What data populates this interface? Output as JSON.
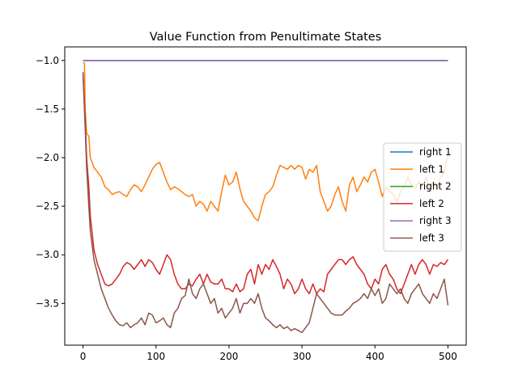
{
  "chart_data": {
    "type": "line",
    "title": "Value Function from Penultimate States",
    "xlabel": "",
    "ylabel": "",
    "xlim": [
      -25,
      525
    ],
    "ylim": [
      -3.93,
      -0.86
    ],
    "xticks": [
      0,
      100,
      200,
      300,
      400,
      500
    ],
    "yticks": [
      -1.0,
      -1.5,
      -2.0,
      -2.5,
      -3.0,
      -3.5
    ],
    "ytick_labels": [
      "−1.0",
      "−1.5",
      "−2.0",
      "−2.5",
      "−3.0",
      "−3.5"
    ],
    "grid": false,
    "legend_position": "right",
    "series": [
      {
        "name": "right 1",
        "color": "#1f77b4",
        "points": [
          [
            0,
            -1.0
          ],
          [
            500,
            -1.0
          ]
        ]
      },
      {
        "name": "left 1",
        "color": "#ff7f0e",
        "points": [
          [
            0,
            -1.02
          ],
          [
            2,
            -1.03
          ],
          [
            3,
            -1.5
          ],
          [
            5,
            -1.75
          ],
          [
            8,
            -1.78
          ],
          [
            10,
            -2.0
          ],
          [
            15,
            -2.1
          ],
          [
            20,
            -2.15
          ],
          [
            25,
            -2.2
          ],
          [
            30,
            -2.3
          ],
          [
            35,
            -2.33
          ],
          [
            40,
            -2.38
          ],
          [
            45,
            -2.36
          ],
          [
            50,
            -2.35
          ],
          [
            55,
            -2.38
          ],
          [
            60,
            -2.4
          ],
          [
            65,
            -2.33
          ],
          [
            70,
            -2.28
          ],
          [
            75,
            -2.3
          ],
          [
            80,
            -2.35
          ],
          [
            85,
            -2.28
          ],
          [
            90,
            -2.2
          ],
          [
            95,
            -2.12
          ],
          [
            100,
            -2.07
          ],
          [
            105,
            -2.05
          ],
          [
            110,
            -2.15
          ],
          [
            115,
            -2.25
          ],
          [
            120,
            -2.33
          ],
          [
            125,
            -2.3
          ],
          [
            130,
            -2.32
          ],
          [
            135,
            -2.35
          ],
          [
            140,
            -2.38
          ],
          [
            145,
            -2.4
          ],
          [
            150,
            -2.38
          ],
          [
            155,
            -2.5
          ],
          [
            160,
            -2.45
          ],
          [
            165,
            -2.48
          ],
          [
            170,
            -2.55
          ],
          [
            175,
            -2.45
          ],
          [
            180,
            -2.5
          ],
          [
            185,
            -2.55
          ],
          [
            190,
            -2.35
          ],
          [
            195,
            -2.18
          ],
          [
            200,
            -2.28
          ],
          [
            205,
            -2.25
          ],
          [
            210,
            -2.15
          ],
          [
            215,
            -2.32
          ],
          [
            220,
            -2.45
          ],
          [
            225,
            -2.5
          ],
          [
            230,
            -2.55
          ],
          [
            235,
            -2.62
          ],
          [
            240,
            -2.65
          ],
          [
            245,
            -2.5
          ],
          [
            250,
            -2.38
          ],
          [
            255,
            -2.35
          ],
          [
            260,
            -2.3
          ],
          [
            265,
            -2.18
          ],
          [
            270,
            -2.08
          ],
          [
            275,
            -2.1
          ],
          [
            280,
            -2.12
          ],
          [
            285,
            -2.08
          ],
          [
            290,
            -2.12
          ],
          [
            295,
            -2.08
          ],
          [
            300,
            -2.1
          ],
          [
            305,
            -2.22
          ],
          [
            310,
            -2.12
          ],
          [
            315,
            -2.15
          ],
          [
            320,
            -2.08
          ],
          [
            325,
            -2.35
          ],
          [
            330,
            -2.45
          ],
          [
            335,
            -2.55
          ],
          [
            340,
            -2.5
          ],
          [
            345,
            -2.38
          ],
          [
            350,
            -2.3
          ],
          [
            355,
            -2.45
          ],
          [
            360,
            -2.55
          ],
          [
            365,
            -2.28
          ],
          [
            370,
            -2.2
          ],
          [
            375,
            -2.35
          ],
          [
            380,
            -2.28
          ],
          [
            385,
            -2.2
          ],
          [
            390,
            -2.25
          ],
          [
            395,
            -2.15
          ],
          [
            400,
            -2.12
          ],
          [
            405,
            -2.25
          ],
          [
            410,
            -2.4
          ],
          [
            415,
            -2.3
          ],
          [
            420,
            -2.35
          ],
          [
            425,
            -2.38
          ],
          [
            430,
            -2.45
          ],
          [
            435,
            -2.35
          ],
          [
            440,
            -2.3
          ],
          [
            445,
            -2.2
          ],
          [
            450,
            -2.28
          ],
          [
            455,
            -2.32
          ],
          [
            460,
            -2.25
          ],
          [
            465,
            -2.3
          ],
          [
            470,
            -2.2
          ],
          [
            475,
            -2.35
          ],
          [
            480,
            -2.25
          ],
          [
            485,
            -2.32
          ],
          [
            490,
            -2.2
          ],
          [
            495,
            -2.15
          ],
          [
            500,
            -1.95
          ]
        ]
      },
      {
        "name": "right 2",
        "color": "#2ca02c",
        "points": [
          [
            0,
            -1.0
          ],
          [
            500,
            -1.0
          ]
        ]
      },
      {
        "name": "left 2",
        "color": "#d62728",
        "points": [
          [
            0,
            -1.15
          ],
          [
            3,
            -1.6
          ],
          [
            5,
            -2.0
          ],
          [
            8,
            -2.3
          ],
          [
            10,
            -2.6
          ],
          [
            15,
            -2.95
          ],
          [
            20,
            -3.1
          ],
          [
            25,
            -3.2
          ],
          [
            30,
            -3.3
          ],
          [
            35,
            -3.32
          ],
          [
            40,
            -3.3
          ],
          [
            45,
            -3.25
          ],
          [
            50,
            -3.2
          ],
          [
            55,
            -3.12
          ],
          [
            60,
            -3.08
          ],
          [
            65,
            -3.1
          ],
          [
            70,
            -3.15
          ],
          [
            75,
            -3.1
          ],
          [
            80,
            -3.05
          ],
          [
            85,
            -3.12
          ],
          [
            90,
            -3.05
          ],
          [
            95,
            -3.08
          ],
          [
            100,
            -3.15
          ],
          [
            105,
            -3.2
          ],
          [
            110,
            -3.1
          ],
          [
            115,
            -3.0
          ],
          [
            120,
            -3.05
          ],
          [
            125,
            -3.2
          ],
          [
            130,
            -3.3
          ],
          [
            135,
            -3.35
          ],
          [
            140,
            -3.35
          ],
          [
            145,
            -3.3
          ],
          [
            150,
            -3.32
          ],
          [
            155,
            -3.25
          ],
          [
            160,
            -3.2
          ],
          [
            165,
            -3.3
          ],
          [
            170,
            -3.2
          ],
          [
            175,
            -3.28
          ],
          [
            180,
            -3.3
          ],
          [
            185,
            -3.3
          ],
          [
            190,
            -3.25
          ],
          [
            195,
            -3.35
          ],
          [
            200,
            -3.35
          ],
          [
            205,
            -3.38
          ],
          [
            210,
            -3.3
          ],
          [
            215,
            -3.38
          ],
          [
            220,
            -3.35
          ],
          [
            225,
            -3.2
          ],
          [
            230,
            -3.15
          ],
          [
            235,
            -3.3
          ],
          [
            240,
            -3.1
          ],
          [
            245,
            -3.2
          ],
          [
            250,
            -3.1
          ],
          [
            255,
            -3.15
          ],
          [
            260,
            -3.05
          ],
          [
            265,
            -3.12
          ],
          [
            270,
            -3.2
          ],
          [
            275,
            -3.35
          ],
          [
            280,
            -3.25
          ],
          [
            285,
            -3.3
          ],
          [
            290,
            -3.4
          ],
          [
            295,
            -3.35
          ],
          [
            300,
            -3.25
          ],
          [
            305,
            -3.35
          ],
          [
            310,
            -3.4
          ],
          [
            315,
            -3.3
          ],
          [
            320,
            -3.4
          ],
          [
            325,
            -3.35
          ],
          [
            330,
            -3.38
          ],
          [
            335,
            -3.2
          ],
          [
            340,
            -3.15
          ],
          [
            345,
            -3.1
          ],
          [
            350,
            -3.05
          ],
          [
            355,
            -3.05
          ],
          [
            360,
            -3.1
          ],
          [
            365,
            -3.05
          ],
          [
            370,
            -3.02
          ],
          [
            375,
            -3.1
          ],
          [
            380,
            -3.15
          ],
          [
            385,
            -3.2
          ],
          [
            390,
            -3.3
          ],
          [
            395,
            -3.35
          ],
          [
            400,
            -3.25
          ],
          [
            405,
            -3.3
          ],
          [
            410,
            -3.15
          ],
          [
            415,
            -3.1
          ],
          [
            420,
            -3.2
          ],
          [
            425,
            -3.25
          ],
          [
            430,
            -3.35
          ],
          [
            435,
            -3.4
          ],
          [
            440,
            -3.3
          ],
          [
            445,
            -3.2
          ],
          [
            450,
            -3.1
          ],
          [
            455,
            -3.2
          ],
          [
            460,
            -3.1
          ],
          [
            465,
            -3.05
          ],
          [
            470,
            -3.1
          ],
          [
            475,
            -3.2
          ],
          [
            480,
            -3.1
          ],
          [
            485,
            -3.12
          ],
          [
            490,
            -3.08
          ],
          [
            495,
            -3.1
          ],
          [
            500,
            -3.05
          ]
        ]
      },
      {
        "name": "right 3",
        "color": "#9467bd",
        "points": [
          [
            0,
            -1.0
          ],
          [
            500,
            -1.0
          ]
        ]
      },
      {
        "name": "left 3",
        "color": "#8c564b",
        "points": [
          [
            0,
            -1.12
          ],
          [
            3,
            -1.7
          ],
          [
            5,
            -2.1
          ],
          [
            8,
            -2.5
          ],
          [
            10,
            -2.75
          ],
          [
            15,
            -3.05
          ],
          [
            20,
            -3.2
          ],
          [
            25,
            -3.35
          ],
          [
            30,
            -3.45
          ],
          [
            35,
            -3.55
          ],
          [
            40,
            -3.62
          ],
          [
            45,
            -3.68
          ],
          [
            50,
            -3.72
          ],
          [
            55,
            -3.73
          ],
          [
            60,
            -3.7
          ],
          [
            65,
            -3.75
          ],
          [
            70,
            -3.72
          ],
          [
            75,
            -3.7
          ],
          [
            80,
            -3.65
          ],
          [
            85,
            -3.72
          ],
          [
            90,
            -3.6
          ],
          [
            95,
            -3.62
          ],
          [
            100,
            -3.7
          ],
          [
            105,
            -3.68
          ],
          [
            110,
            -3.65
          ],
          [
            115,
            -3.72
          ],
          [
            120,
            -3.75
          ],
          [
            125,
            -3.6
          ],
          [
            130,
            -3.55
          ],
          [
            135,
            -3.45
          ],
          [
            140,
            -3.42
          ],
          [
            145,
            -3.25
          ],
          [
            150,
            -3.4
          ],
          [
            155,
            -3.45
          ],
          [
            160,
            -3.35
          ],
          [
            165,
            -3.3
          ],
          [
            170,
            -3.4
          ],
          [
            175,
            -3.5
          ],
          [
            180,
            -3.45
          ],
          [
            185,
            -3.6
          ],
          [
            190,
            -3.55
          ],
          [
            195,
            -3.65
          ],
          [
            200,
            -3.6
          ],
          [
            205,
            -3.55
          ],
          [
            210,
            -3.45
          ],
          [
            215,
            -3.6
          ],
          [
            220,
            -3.5
          ],
          [
            225,
            -3.5
          ],
          [
            230,
            -3.45
          ],
          [
            235,
            -3.5
          ],
          [
            240,
            -3.4
          ],
          [
            245,
            -3.55
          ],
          [
            250,
            -3.65
          ],
          [
            255,
            -3.68
          ],
          [
            260,
            -3.72
          ],
          [
            265,
            -3.75
          ],
          [
            270,
            -3.72
          ],
          [
            275,
            -3.76
          ],
          [
            280,
            -3.74
          ],
          [
            285,
            -3.78
          ],
          [
            290,
            -3.76
          ],
          [
            295,
            -3.78
          ],
          [
            300,
            -3.8
          ],
          [
            305,
            -3.75
          ],
          [
            310,
            -3.7
          ],
          [
            315,
            -3.55
          ],
          [
            320,
            -3.4
          ],
          [
            325,
            -3.45
          ],
          [
            330,
            -3.5
          ],
          [
            335,
            -3.55
          ],
          [
            340,
            -3.6
          ],
          [
            345,
            -3.62
          ],
          [
            350,
            -3.62
          ],
          [
            355,
            -3.62
          ],
          [
            360,
            -3.58
          ],
          [
            365,
            -3.55
          ],
          [
            370,
            -3.5
          ],
          [
            375,
            -3.48
          ],
          [
            380,
            -3.45
          ],
          [
            385,
            -3.4
          ],
          [
            390,
            -3.45
          ],
          [
            395,
            -3.35
          ],
          [
            400,
            -3.42
          ],
          [
            405,
            -3.35
          ],
          [
            410,
            -3.5
          ],
          [
            415,
            -3.45
          ],
          [
            420,
            -3.3
          ],
          [
            425,
            -3.35
          ],
          [
            430,
            -3.4
          ],
          [
            435,
            -3.35
          ],
          [
            440,
            -3.45
          ],
          [
            445,
            -3.5
          ],
          [
            450,
            -3.4
          ],
          [
            455,
            -3.35
          ],
          [
            460,
            -3.3
          ],
          [
            465,
            -3.4
          ],
          [
            470,
            -3.45
          ],
          [
            475,
            -3.5
          ],
          [
            480,
            -3.4
          ],
          [
            485,
            -3.45
          ],
          [
            490,
            -3.35
          ],
          [
            495,
            -3.25
          ],
          [
            500,
            -3.52
          ]
        ]
      }
    ]
  }
}
